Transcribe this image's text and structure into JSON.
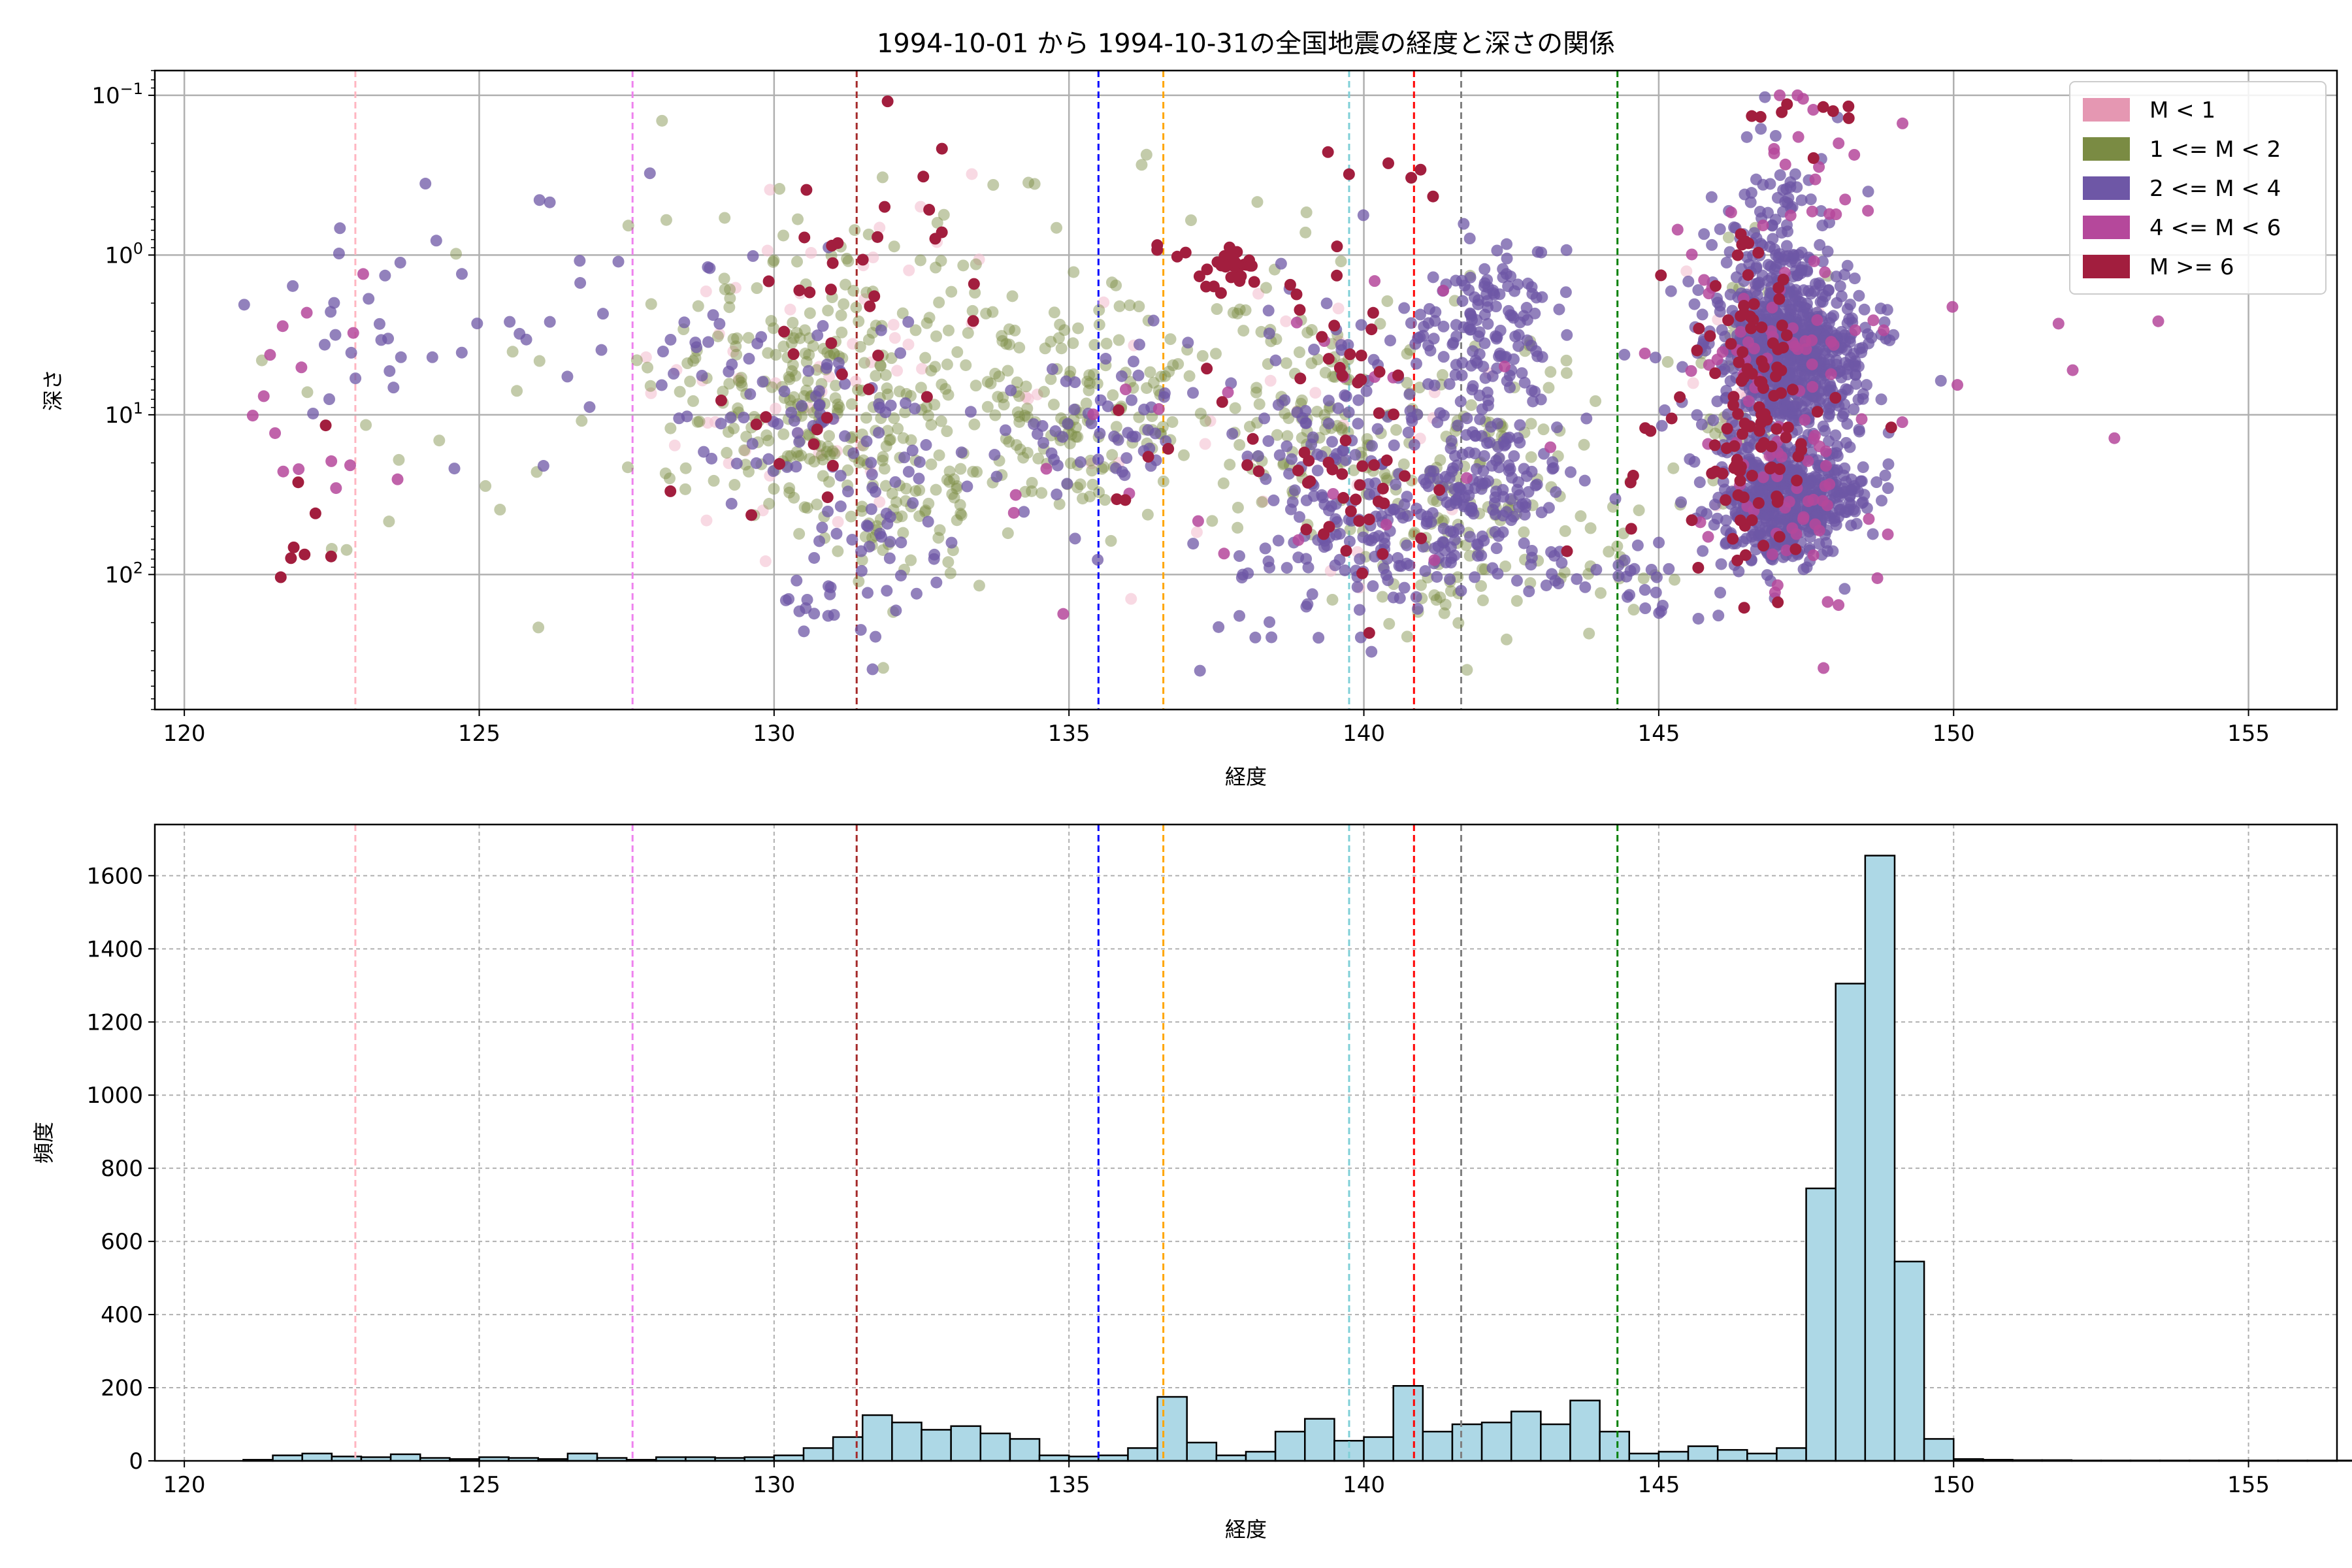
{
  "chart_data": [
    {
      "type": "scatter",
      "title": "1994-10-01 から 1994-10-31の全国地震の経度と深さの関係",
      "xlabel": "経度",
      "ylabel": "深さ",
      "xlim": [
        119.5,
        156.5
      ],
      "ylim": [
        700,
        0.07
      ],
      "yscale": "log",
      "yaxis_inverted": true,
      "grid": true,
      "legend_position": "top-right",
      "xticks": [
        120,
        125,
        130,
        135,
        140,
        145,
        150,
        155
      ],
      "yticks": [
        {
          "value": 0.1,
          "label": "10",
          "exp": "−1"
        },
        {
          "value": 1,
          "label": "10",
          "exp": "0"
        },
        {
          "value": 10,
          "label": "10",
          "exp": "1"
        },
        {
          "value": 100,
          "label": "10",
          "exp": "2"
        }
      ],
      "legend": [
        {
          "label": "M < 1",
          "color": "#e597b2"
        },
        {
          "label": "1 <= M < 2",
          "color": "#7a8b43"
        },
        {
          "label": "2 <= M < 4",
          "color": "#6e57a6"
        },
        {
          "label": "4 <= M < 6",
          "color": "#b5489b"
        },
        {
          "label": "M >= 6",
          "color": "#a21e3e"
        }
      ],
      "series": [
        {
          "name": "M < 1",
          "color": "#f3c0d0",
          "alpha": 0.6,
          "clusters": [
            [
              130.3,
              8,
              1.2,
              0.5,
              40
            ],
            [
              132.5,
              2,
              1.2,
              0.4,
              20
            ],
            [
              137.0,
              8,
              1.5,
              0.5,
              15
            ],
            [
              140.0,
              12,
              1.0,
              0.6,
              15
            ],
            [
              146.8,
              5,
              0.7,
              0.4,
              20
            ]
          ]
        },
        {
          "name": "1 <= M < 2",
          "color": "#7a8b43",
          "alpha": 0.45,
          "clusters": [
            [
              130.5,
              9,
              1.3,
              0.35,
              220
            ],
            [
              132.2,
              40,
              0.8,
              0.3,
              60
            ],
            [
              131.5,
              1.5,
              1.5,
              0.4,
              60
            ],
            [
              135.0,
              9,
              1.2,
              0.35,
              160
            ],
            [
              139.2,
              10,
              1.0,
              0.4,
              100
            ],
            [
              141.3,
              60,
              0.7,
              0.35,
              80
            ],
            [
              142.0,
              15,
              1.0,
              0.4,
              60
            ],
            [
              146.5,
              4,
              0.6,
              0.5,
              40
            ],
            [
              144.5,
              80,
              0.8,
              0.3,
              20
            ],
            [
              124.0,
              20,
              1.2,
              0.5,
              15
            ],
            [
              137.5,
              5,
              2.0,
              0.6,
              40
            ]
          ]
        },
        {
          "name": "2 <= M < 4",
          "color": "#6e57a6",
          "alpha": 0.75,
          "clusters": [
            [
              147.2,
              4,
              0.6,
              0.25,
              700
            ],
            [
              147.2,
              35,
              0.6,
              0.2,
              500
            ],
            [
              146.9,
              0.8,
              0.5,
              0.3,
              100
            ],
            [
              142.0,
              3,
              0.6,
              0.3,
              150
            ],
            [
              142.2,
              30,
              0.6,
              0.25,
              120
            ],
            [
              140.3,
              60,
              0.8,
              0.25,
              120
            ],
            [
              139.5,
              10,
              0.8,
              0.4,
              80
            ],
            [
              130.5,
              8,
              1.2,
              0.35,
              80
            ],
            [
              132.0,
              40,
              0.8,
              0.3,
              50
            ],
            [
              130.6,
              150,
              0.3,
              0.1,
              12
            ],
            [
              135.5,
              10,
              1.0,
              0.3,
              60
            ],
            [
              144.0,
              100,
              0.8,
              0.1,
              25
            ],
            [
              138.5,
              100,
              1.2,
              0.3,
              25
            ],
            [
              123.0,
              5,
              1.5,
              0.5,
              30
            ],
            [
              126.5,
              2,
              0.8,
              0.4,
              15
            ],
            [
              145.0,
              30,
              1.5,
              0.4,
              30
            ]
          ]
        },
        {
          "name": "4 <= M < 6",
          "color": "#b5489b",
          "alpha": 0.85,
          "clusters": [
            [
              147.0,
              5,
              0.8,
              0.5,
              60
            ],
            [
              147.3,
              30,
              0.6,
              0.4,
              40
            ],
            [
              147.5,
              0.3,
              0.6,
              0.4,
              20
            ],
            [
              122.2,
              5,
              0.8,
              0.5,
              15
            ],
            [
              151.5,
              5,
              1.5,
              0.4,
              8
            ],
            [
              140.0,
              5,
              1.5,
              0.6,
              15
            ],
            [
              135.5,
              30,
              1.5,
              0.6,
              10
            ]
          ]
        },
        {
          "name": "M >= 6",
          "color": "#a21e3e",
          "alpha": 1.0,
          "clusters": [
            [
              146.6,
              4,
              0.4,
              0.4,
              60
            ],
            [
              146.8,
              25,
              0.5,
              0.35,
              50
            ],
            [
              137.6,
              1.2,
              0.4,
              0.12,
              30
            ],
            [
              139.6,
              3,
              0.5,
              0.4,
              25
            ],
            [
              140.0,
              35,
              0.5,
              0.3,
              25
            ],
            [
              131.5,
              1.0,
              1.0,
              0.4,
              25
            ],
            [
              130.5,
              10,
              1.0,
              0.4,
              15
            ],
            [
              122.0,
              40,
              0.3,
              0.5,
              8
            ],
            [
              144.5,
              15,
              0.5,
              0.5,
              10
            ],
            [
              147.2,
              0.12,
              0.6,
              0.05,
              8
            ],
            [
              137.5,
              15,
              1.2,
              0.3,
              15
            ],
            [
              141.0,
              0.4,
              0.3,
              0.1,
              4
            ]
          ]
        }
      ]
    },
    {
      "type": "histogram",
      "xlabel": "経度",
      "ylabel": "頻度",
      "xlim": [
        119.5,
        156.5
      ],
      "ylim": [
        0,
        1740
      ],
      "grid": true,
      "bar_color": "#add8e6",
      "edge_color": "#000000",
      "xticks": [
        120,
        125,
        130,
        135,
        140,
        145,
        150,
        155
      ],
      "yticks": [
        0,
        200,
        400,
        600,
        800,
        1000,
        1200,
        1400,
        1600
      ],
      "bin_start": 121.0,
      "bin_width": 0.5,
      "counts": [
        3,
        15,
        20,
        12,
        10,
        18,
        8,
        5,
        10,
        8,
        5,
        20,
        8,
        3,
        10,
        10,
        8,
        10,
        15,
        35,
        65,
        125,
        105,
        85,
        95,
        75,
        60,
        15,
        12,
        15,
        35,
        175,
        50,
        15,
        25,
        80,
        115,
        55,
        65,
        205,
        80,
        100,
        105,
        135,
        100,
        165,
        80,
        20,
        25,
        40,
        30,
        20,
        35,
        745,
        1305,
        1655,
        545,
        60,
        5,
        3,
        2,
        2,
        1,
        1,
        1,
        1,
        1,
        1,
        1,
        1,
        1,
        1
      ],
      "reference_lines": [
        {
          "x": 122.9,
          "color": "#ffb6c1"
        },
        {
          "x": 127.6,
          "color": "#ee82ee"
        },
        {
          "x": 131.4,
          "color": "#a52a2a"
        },
        {
          "x": 135.5,
          "color": "#0000ff"
        },
        {
          "x": 136.6,
          "color": "#ffa500"
        },
        {
          "x": 139.75,
          "color": "#7fcfd7"
        },
        {
          "x": 140.85,
          "color": "#ff0000"
        },
        {
          "x": 141.65,
          "color": "#808080"
        },
        {
          "x": 144.3,
          "color": "#008000"
        }
      ]
    }
  ]
}
